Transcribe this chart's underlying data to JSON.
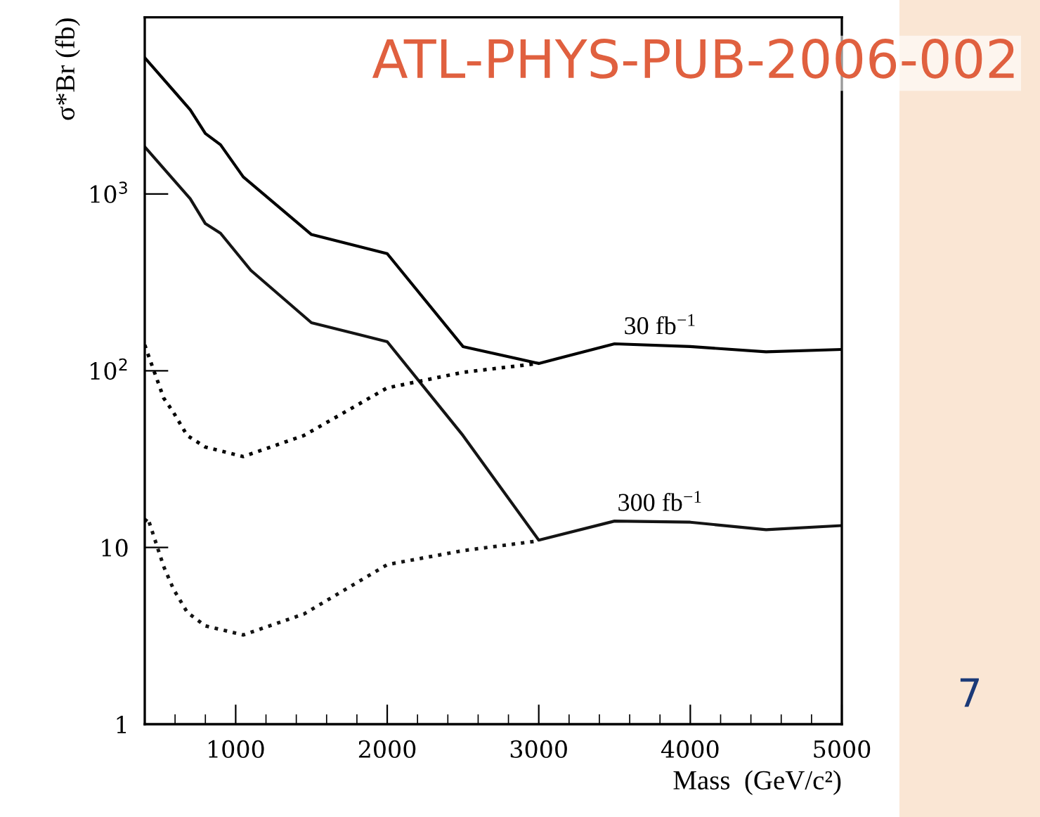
{
  "chart_data": {
    "type": "line",
    "xlabel": "Mass  (GeV/c²)",
    "ylabel": "σ*Br (fb)",
    "log": "y",
    "xlim": [
      400,
      5000
    ],
    "xticks": [
      {
        "value": 600,
        "label": null
      },
      {
        "value": 800,
        "label": null
      },
      1000,
      {
        "value": 1200,
        "label": null
      },
      {
        "value": 1400,
        "label": null
      },
      {
        "value": 1600,
        "label": null
      },
      {
        "value": 1800,
        "label": null
      },
      2000,
      {
        "value": 2200,
        "label": null
      },
      {
        "value": 2400,
        "label": null
      },
      {
        "value": 2600,
        "label": null
      },
      {
        "value": 2800,
        "label": null
      },
      3000,
      {
        "value": 3200,
        "label": null
      },
      {
        "value": 3400,
        "label": null
      },
      {
        "value": 3600,
        "label": null
      },
      {
        "value": 3800,
        "label": null
      },
      4000,
      {
        "value": 4200,
        "label": null
      },
      {
        "value": 4400,
        "label": null
      },
      {
        "value": 4600,
        "label": null
      },
      {
        "value": 4800,
        "label": null
      },
      5000
    ],
    "ylim": [
      1,
      10000
    ],
    "yticks": [
      1,
      10,
      {
        "value": 100,
        "label": "10$^{2}$"
      },
      {
        "value": 1000,
        "label": "10$^{3}$"
      }
    ],
    "grid": false,
    "legend": false,
    "marker": "none",
    "series": [
      {
        "color": "#000000",
        "line_style": "solid",
        "x": [
          400,
          700,
          800,
          900,
          1050,
          1500,
          2000,
          2500,
          3000,
          3500,
          4000,
          4500,
          5000
        ],
        "values": [
          5900,
          3000,
          2200,
          1900,
          1250,
          590,
          460,
          137,
          110,
          142,
          137,
          128,
          132
        ]
      },
      {
        "color": "#141414",
        "line_style": "solid",
        "x": [
          400,
          700,
          800,
          900,
          1100,
          1500,
          2000,
          2500,
          3000,
          3500,
          4000,
          4500,
          5000
        ],
        "values": [
          1850,
          940,
          680,
          600,
          370,
          187,
          146,
          43,
          11,
          14.1,
          13.9,
          12.6,
          13.3
        ]
      },
      {
        "color": "#000000",
        "line_style": "dotted",
        "x": [
          400,
          420,
          525,
          590,
          680,
          800,
          1050,
          1450,
          2000,
          2500,
          3000
        ],
        "values": [
          140,
          125,
          70,
          58,
          43,
          37,
          32.7,
          43,
          80,
          98,
          110
        ]
      },
      {
        "color": "#141414",
        "line_style": "dotted",
        "x": [
          400,
          420,
          525,
          590,
          680,
          800,
          1050,
          1450,
          2000,
          2500,
          3000
        ],
        "values": [
          14,
          14.7,
          7.8,
          5.8,
          4.3,
          3.6,
          3.2,
          4.2,
          8.0,
          9.6,
          10.9
        ]
      }
    ],
    "annotations": [
      {
        "text": "30 fb$^{−1}$",
        "x": 3800,
        "y": 150
      },
      {
        "text": "300 fb$^{−1}$",
        "x": 3800,
        "y": 15
      },
      "ATL-PHYS-PUB-2006-002",
      "7"
    ]
  }
}
